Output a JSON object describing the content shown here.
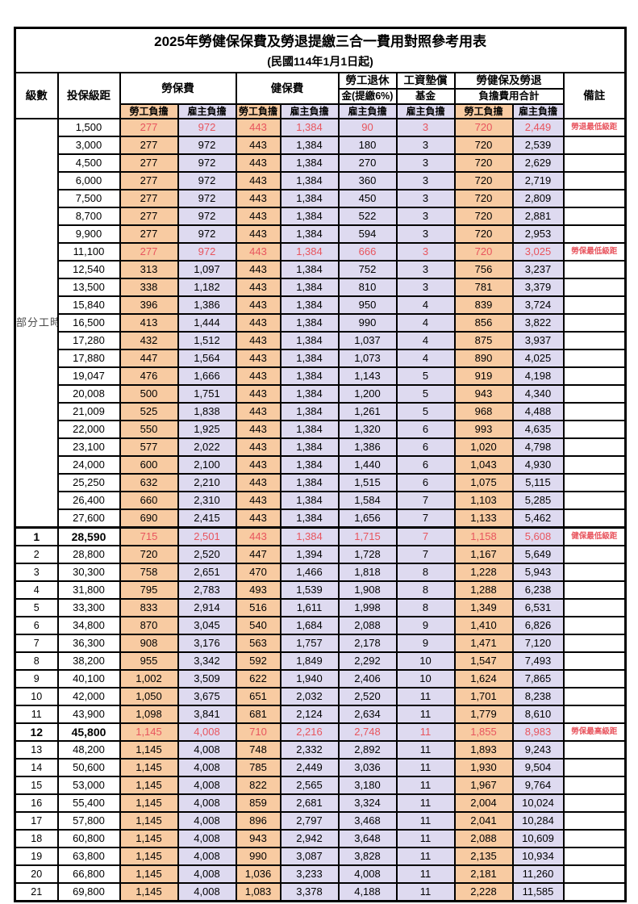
{
  "title": "2025年勞健保保費及勞退提繳三合一費用對照參考用表",
  "subtitle": "(民國114年1月1日起)",
  "colors": {
    "employee_column_bg": "#f8cba2",
    "employer_column_bg": "#dedaf0",
    "highlight_text": "#e8555e",
    "grid_line": "#000000"
  },
  "header": {
    "level": "級數",
    "bracket": "投保級距",
    "labor_insurance": "勞保費",
    "health_insurance": "健保費",
    "pension_line1": "勞工退休",
    "pension_line2": "金(提繳6%)",
    "wage_fund_line1": "工資墊償",
    "wage_fund_line2": "基金",
    "total_line1": "勞健保及勞退",
    "total_line2": "負擔費用合計",
    "remark": "備註",
    "employee": "勞工負擔",
    "employer": "雇主負擔"
  },
  "part_time_label": "部分工時",
  "part_time_rowspan": 23,
  "rows": [
    {
      "level": null,
      "bracket": "1,500",
      "labor_emp": "277",
      "labor_er": "972",
      "health_emp": "443",
      "health_er": "1,384",
      "pension": "90",
      "wage_fund": "3",
      "total_emp": "720",
      "total_er": "2,449",
      "remark": "勞退最低級距",
      "red": true,
      "bold": false
    },
    {
      "level": null,
      "bracket": "3,000",
      "labor_emp": "277",
      "labor_er": "972",
      "health_emp": "443",
      "health_er": "1,384",
      "pension": "180",
      "wage_fund": "3",
      "total_emp": "720",
      "total_er": "2,539",
      "remark": "",
      "red": false,
      "bold": false
    },
    {
      "level": null,
      "bracket": "4,500",
      "labor_emp": "277",
      "labor_er": "972",
      "health_emp": "443",
      "health_er": "1,384",
      "pension": "270",
      "wage_fund": "3",
      "total_emp": "720",
      "total_er": "2,629",
      "remark": "",
      "red": false,
      "bold": false
    },
    {
      "level": null,
      "bracket": "6,000",
      "labor_emp": "277",
      "labor_er": "972",
      "health_emp": "443",
      "health_er": "1,384",
      "pension": "360",
      "wage_fund": "3",
      "total_emp": "720",
      "total_er": "2,719",
      "remark": "",
      "red": false,
      "bold": false
    },
    {
      "level": null,
      "bracket": "7,500",
      "labor_emp": "277",
      "labor_er": "972",
      "health_emp": "443",
      "health_er": "1,384",
      "pension": "450",
      "wage_fund": "3",
      "total_emp": "720",
      "total_er": "2,809",
      "remark": "",
      "red": false,
      "bold": false
    },
    {
      "level": null,
      "bracket": "8,700",
      "labor_emp": "277",
      "labor_er": "972",
      "health_emp": "443",
      "health_er": "1,384",
      "pension": "522",
      "wage_fund": "3",
      "total_emp": "720",
      "total_er": "2,881",
      "remark": "",
      "red": false,
      "bold": false
    },
    {
      "level": null,
      "bracket": "9,900",
      "labor_emp": "277",
      "labor_er": "972",
      "health_emp": "443",
      "health_er": "1,384",
      "pension": "594",
      "wage_fund": "3",
      "total_emp": "720",
      "total_er": "2,953",
      "remark": "",
      "red": false,
      "bold": false
    },
    {
      "level": null,
      "bracket": "11,100",
      "labor_emp": "277",
      "labor_er": "972",
      "health_emp": "443",
      "health_er": "1,384",
      "pension": "666",
      "wage_fund": "3",
      "total_emp": "720",
      "total_er": "3,025",
      "remark": "勞保最低級距",
      "red": true,
      "bold": false
    },
    {
      "level": null,
      "bracket": "12,540",
      "labor_emp": "313",
      "labor_er": "1,097",
      "health_emp": "443",
      "health_er": "1,384",
      "pension": "752",
      "wage_fund": "3",
      "total_emp": "756",
      "total_er": "3,237",
      "remark": "",
      "red": false,
      "bold": false
    },
    {
      "level": null,
      "bracket": "13,500",
      "labor_emp": "338",
      "labor_er": "1,182",
      "health_emp": "443",
      "health_er": "1,384",
      "pension": "810",
      "wage_fund": "3",
      "total_emp": "781",
      "total_er": "3,379",
      "remark": "",
      "red": false,
      "bold": false
    },
    {
      "level": null,
      "bracket": "15,840",
      "labor_emp": "396",
      "labor_er": "1,386",
      "health_emp": "443",
      "health_er": "1,384",
      "pension": "950",
      "wage_fund": "4",
      "total_emp": "839",
      "total_er": "3,724",
      "remark": "",
      "red": false,
      "bold": false
    },
    {
      "level": null,
      "bracket": "16,500",
      "labor_emp": "413",
      "labor_er": "1,444",
      "health_emp": "443",
      "health_er": "1,384",
      "pension": "990",
      "wage_fund": "4",
      "total_emp": "856",
      "total_er": "3,822",
      "remark": "",
      "red": false,
      "bold": false
    },
    {
      "level": null,
      "bracket": "17,280",
      "labor_emp": "432",
      "labor_er": "1,512",
      "health_emp": "443",
      "health_er": "1,384",
      "pension": "1,037",
      "wage_fund": "4",
      "total_emp": "875",
      "total_er": "3,937",
      "remark": "",
      "red": false,
      "bold": false
    },
    {
      "level": null,
      "bracket": "17,880",
      "labor_emp": "447",
      "labor_er": "1,564",
      "health_emp": "443",
      "health_er": "1,384",
      "pension": "1,073",
      "wage_fund": "4",
      "total_emp": "890",
      "total_er": "4,025",
      "remark": "",
      "red": false,
      "bold": false
    },
    {
      "level": null,
      "bracket": "19,047",
      "labor_emp": "476",
      "labor_er": "1,666",
      "health_emp": "443",
      "health_er": "1,384",
      "pension": "1,143",
      "wage_fund": "5",
      "total_emp": "919",
      "total_er": "4,198",
      "remark": "",
      "red": false,
      "bold": false
    },
    {
      "level": null,
      "bracket": "20,008",
      "labor_emp": "500",
      "labor_er": "1,751",
      "health_emp": "443",
      "health_er": "1,384",
      "pension": "1,200",
      "wage_fund": "5",
      "total_emp": "943",
      "total_er": "4,340",
      "remark": "",
      "red": false,
      "bold": false
    },
    {
      "level": null,
      "bracket": "21,009",
      "labor_emp": "525",
      "labor_er": "1,838",
      "health_emp": "443",
      "health_er": "1,384",
      "pension": "1,261",
      "wage_fund": "5",
      "total_emp": "968",
      "total_er": "4,488",
      "remark": "",
      "red": false,
      "bold": false
    },
    {
      "level": null,
      "bracket": "22,000",
      "labor_emp": "550",
      "labor_er": "1,925",
      "health_emp": "443",
      "health_er": "1,384",
      "pension": "1,320",
      "wage_fund": "6",
      "total_emp": "993",
      "total_er": "4,635",
      "remark": "",
      "red": false,
      "bold": false
    },
    {
      "level": null,
      "bracket": "23,100",
      "labor_emp": "577",
      "labor_er": "2,022",
      "health_emp": "443",
      "health_er": "1,384",
      "pension": "1,386",
      "wage_fund": "6",
      "total_emp": "1,020",
      "total_er": "4,798",
      "remark": "",
      "red": false,
      "bold": false
    },
    {
      "level": null,
      "bracket": "24,000",
      "labor_emp": "600",
      "labor_er": "2,100",
      "health_emp": "443",
      "health_er": "1,384",
      "pension": "1,440",
      "wage_fund": "6",
      "total_emp": "1,043",
      "total_er": "4,930",
      "remark": "",
      "red": false,
      "bold": false
    },
    {
      "level": null,
      "bracket": "25,250",
      "labor_emp": "632",
      "labor_er": "2,210",
      "health_emp": "443",
      "health_er": "1,384",
      "pension": "1,515",
      "wage_fund": "6",
      "total_emp": "1,075",
      "total_er": "5,115",
      "remark": "",
      "red": false,
      "bold": false
    },
    {
      "level": null,
      "bracket": "26,400",
      "labor_emp": "660",
      "labor_er": "2,310",
      "health_emp": "443",
      "health_er": "1,384",
      "pension": "1,584",
      "wage_fund": "7",
      "total_emp": "1,103",
      "total_er": "5,285",
      "remark": "",
      "red": false,
      "bold": false
    },
    {
      "level": null,
      "bracket": "27,600",
      "labor_emp": "690",
      "labor_er": "2,415",
      "health_emp": "443",
      "health_er": "1,384",
      "pension": "1,656",
      "wage_fund": "7",
      "total_emp": "1,133",
      "total_er": "5,462",
      "remark": "",
      "red": false,
      "bold": false
    },
    {
      "level": "1",
      "bracket": "28,590",
      "labor_emp": "715",
      "labor_er": "2,501",
      "health_emp": "443",
      "health_er": "1,384",
      "pension": "1,715",
      "wage_fund": "7",
      "total_emp": "1,158",
      "total_er": "5,608",
      "remark": "健保最低級距",
      "red": true,
      "bold": true
    },
    {
      "level": "2",
      "bracket": "28,800",
      "labor_emp": "720",
      "labor_er": "2,520",
      "health_emp": "447",
      "health_er": "1,394",
      "pension": "1,728",
      "wage_fund": "7",
      "total_emp": "1,167",
      "total_er": "5,649",
      "remark": "",
      "red": false,
      "bold": false
    },
    {
      "level": "3",
      "bracket": "30,300",
      "labor_emp": "758",
      "labor_er": "2,651",
      "health_emp": "470",
      "health_er": "1,466",
      "pension": "1,818",
      "wage_fund": "8",
      "total_emp": "1,228",
      "total_er": "5,943",
      "remark": "",
      "red": false,
      "bold": false
    },
    {
      "level": "4",
      "bracket": "31,800",
      "labor_emp": "795",
      "labor_er": "2,783",
      "health_emp": "493",
      "health_er": "1,539",
      "pension": "1,908",
      "wage_fund": "8",
      "total_emp": "1,288",
      "total_er": "6,238",
      "remark": "",
      "red": false,
      "bold": false
    },
    {
      "level": "5",
      "bracket": "33,300",
      "labor_emp": "833",
      "labor_er": "2,914",
      "health_emp": "516",
      "health_er": "1,611",
      "pension": "1,998",
      "wage_fund": "8",
      "total_emp": "1,349",
      "total_er": "6,531",
      "remark": "",
      "red": false,
      "bold": false
    },
    {
      "level": "6",
      "bracket": "34,800",
      "labor_emp": "870",
      "labor_er": "3,045",
      "health_emp": "540",
      "health_er": "1,684",
      "pension": "2,088",
      "wage_fund": "9",
      "total_emp": "1,410",
      "total_er": "6,826",
      "remark": "",
      "red": false,
      "bold": false
    },
    {
      "level": "7",
      "bracket": "36,300",
      "labor_emp": "908",
      "labor_er": "3,176",
      "health_emp": "563",
      "health_er": "1,757",
      "pension": "2,178",
      "wage_fund": "9",
      "total_emp": "1,471",
      "total_er": "7,120",
      "remark": "",
      "red": false,
      "bold": false
    },
    {
      "level": "8",
      "bracket": "38,200",
      "labor_emp": "955",
      "labor_er": "3,342",
      "health_emp": "592",
      "health_er": "1,849",
      "pension": "2,292",
      "wage_fund": "10",
      "total_emp": "1,547",
      "total_er": "7,493",
      "remark": "",
      "red": false,
      "bold": false
    },
    {
      "level": "9",
      "bracket": "40,100",
      "labor_emp": "1,002",
      "labor_er": "3,509",
      "health_emp": "622",
      "health_er": "1,940",
      "pension": "2,406",
      "wage_fund": "10",
      "total_emp": "1,624",
      "total_er": "7,865",
      "remark": "",
      "red": false,
      "bold": false
    },
    {
      "level": "10",
      "bracket": "42,000",
      "labor_emp": "1,050",
      "labor_er": "3,675",
      "health_emp": "651",
      "health_er": "2,032",
      "pension": "2,520",
      "wage_fund": "11",
      "total_emp": "1,701",
      "total_er": "8,238",
      "remark": "",
      "red": false,
      "bold": false
    },
    {
      "level": "11",
      "bracket": "43,900",
      "labor_emp": "1,098",
      "labor_er": "3,841",
      "health_emp": "681",
      "health_er": "2,124",
      "pension": "2,634",
      "wage_fund": "11",
      "total_emp": "1,779",
      "total_er": "8,610",
      "remark": "",
      "red": false,
      "bold": false
    },
    {
      "level": "12",
      "bracket": "45,800",
      "labor_emp": "1,145",
      "labor_er": "4,008",
      "health_emp": "710",
      "health_er": "2,216",
      "pension": "2,748",
      "wage_fund": "11",
      "total_emp": "1,855",
      "total_er": "8,983",
      "remark": "勞保最高級距",
      "red": true,
      "bold": true
    },
    {
      "level": "13",
      "bracket": "48,200",
      "labor_emp": "1,145",
      "labor_er": "4,008",
      "health_emp": "748",
      "health_er": "2,332",
      "pension": "2,892",
      "wage_fund": "11",
      "total_emp": "1,893",
      "total_er": "9,243",
      "remark": "",
      "red": false,
      "bold": false
    },
    {
      "level": "14",
      "bracket": "50,600",
      "labor_emp": "1,145",
      "labor_er": "4,008",
      "health_emp": "785",
      "health_er": "2,449",
      "pension": "3,036",
      "wage_fund": "11",
      "total_emp": "1,930",
      "total_er": "9,504",
      "remark": "",
      "red": false,
      "bold": false
    },
    {
      "level": "15",
      "bracket": "53,000",
      "labor_emp": "1,145",
      "labor_er": "4,008",
      "health_emp": "822",
      "health_er": "2,565",
      "pension": "3,180",
      "wage_fund": "11",
      "total_emp": "1,967",
      "total_er": "9,764",
      "remark": "",
      "red": false,
      "bold": false
    },
    {
      "level": "16",
      "bracket": "55,400",
      "labor_emp": "1,145",
      "labor_er": "4,008",
      "health_emp": "859",
      "health_er": "2,681",
      "pension": "3,324",
      "wage_fund": "11",
      "total_emp": "2,004",
      "total_er": "10,024",
      "remark": "",
      "red": false,
      "bold": false
    },
    {
      "level": "17",
      "bracket": "57,800",
      "labor_emp": "1,145",
      "labor_er": "4,008",
      "health_emp": "896",
      "health_er": "2,797",
      "pension": "3,468",
      "wage_fund": "11",
      "total_emp": "2,041",
      "total_er": "10,284",
      "remark": "",
      "red": false,
      "bold": false
    },
    {
      "level": "18",
      "bracket": "60,800",
      "labor_emp": "1,145",
      "labor_er": "4,008",
      "health_emp": "943",
      "health_er": "2,942",
      "pension": "3,648",
      "wage_fund": "11",
      "total_emp": "2,088",
      "total_er": "10,609",
      "remark": "",
      "red": false,
      "bold": false
    },
    {
      "level": "19",
      "bracket": "63,800",
      "labor_emp": "1,145",
      "labor_er": "4,008",
      "health_emp": "990",
      "health_er": "3,087",
      "pension": "3,828",
      "wage_fund": "11",
      "total_emp": "2,135",
      "total_er": "10,934",
      "remark": "",
      "red": false,
      "bold": false
    },
    {
      "level": "20",
      "bracket": "66,800",
      "labor_emp": "1,145",
      "labor_er": "4,008",
      "health_emp": "1,036",
      "health_er": "3,233",
      "pension": "4,008",
      "wage_fund": "11",
      "total_emp": "2,181",
      "total_er": "11,260",
      "remark": "",
      "red": false,
      "bold": false
    },
    {
      "level": "21",
      "bracket": "69,800",
      "labor_emp": "1,145",
      "labor_er": "4,008",
      "health_emp": "1,083",
      "health_er": "3,378",
      "pension": "4,188",
      "wage_fund": "11",
      "total_emp": "2,228",
      "total_er": "11,585",
      "remark": "",
      "red": false,
      "bold": false
    }
  ]
}
